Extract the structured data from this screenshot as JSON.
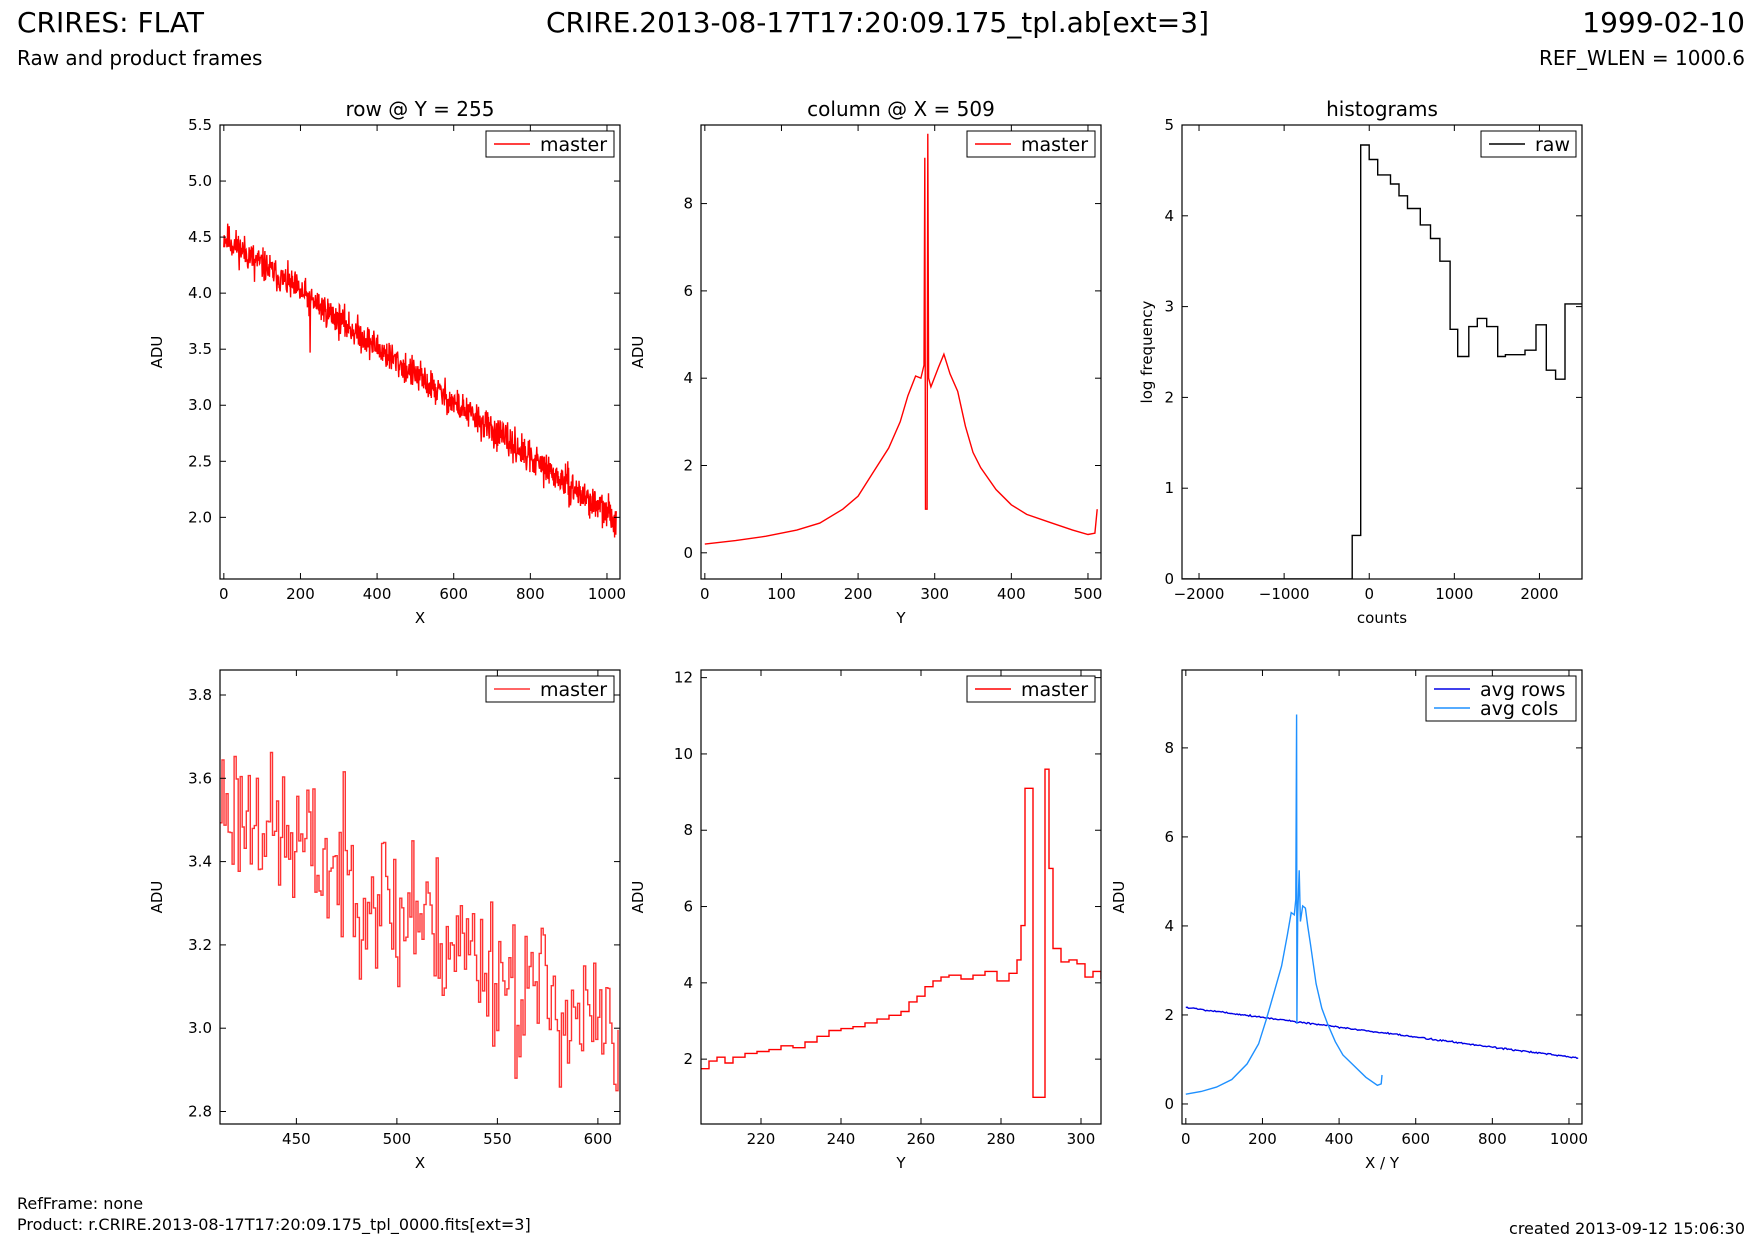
{
  "header": {
    "title": "CRIRES: FLAT",
    "subtitle": "Raw and product frames",
    "file": "CRIRE.2013-08-17T17:20:09.175_tpl.ab[ext=3]",
    "date": "1999-02-10",
    "ref_wlen": "REF_WLEN = 1000.6"
  },
  "footer": {
    "ref_frame": "RefFrame: none",
    "product": "Product: r.CRIRE.2013-08-17T17:20:09.175_tpl_0000.fits[ext=3]",
    "created": "created 2013-09-12 15:06:30"
  },
  "colors": {
    "red": "#ff0000",
    "red_light": "#ff3333",
    "black": "#000000",
    "blue": "#0000e6",
    "light_blue": "#1e90ff"
  },
  "chart_data": [
    {
      "id": "row-full",
      "type": "line",
      "title": "row @ Y = 255",
      "xlabel": "X",
      "ylabel": "ADU",
      "xlim": [
        -10,
        1034
      ],
      "ylim": [
        1.45,
        5.5
      ],
      "xticks": [
        0,
        200,
        400,
        600,
        800,
        1000
      ],
      "yticks": [
        2.0,
        2.5,
        3.0,
        3.5,
        4.0,
        4.5,
        5.0,
        5.5
      ],
      "ytick_labels": [
        "2.0",
        "2.5",
        "3.0",
        "3.5",
        "4.0",
        "4.5",
        "5.0",
        "5.5"
      ],
      "legend": {
        "position": "top-right"
      },
      "series": [
        {
          "name": "master",
          "color": "#ff0000",
          "generator": {
            "kind": "linear-noise",
            "x0": 0,
            "x1": 1024,
            "n": 1024,
            "y0": 4.5,
            "y1": 1.98,
            "noise": 0.09,
            "seed": 11,
            "spikes": [
              [
                225,
                3.47
              ],
              [
                80,
                4.1
              ],
              [
                790,
                2.42
              ],
              [
                1020,
                1.82
              ]
            ]
          }
        }
      ]
    },
    {
      "id": "col-full",
      "type": "line",
      "title": "column @ X = 509",
      "xlabel": "Y",
      "ylabel": "ADU",
      "xlim": [
        -5,
        517
      ],
      "ylim": [
        -0.6,
        9.8
      ],
      "xticks": [
        0,
        100,
        200,
        300,
        400,
        500
      ],
      "yticks": [
        0,
        2,
        4,
        6,
        8
      ],
      "legend": {
        "position": "top-right"
      },
      "series": [
        {
          "name": "master",
          "color": "#ff0000",
          "points": [
            [
              0,
              0.2
            ],
            [
              40,
              0.28
            ],
            [
              80,
              0.38
            ],
            [
              120,
              0.52
            ],
            [
              150,
              0.68
            ],
            [
              180,
              1.0
            ],
            [
              200,
              1.3
            ],
            [
              220,
              1.85
            ],
            [
              240,
              2.4
            ],
            [
              255,
              3.0
            ],
            [
              265,
              3.6
            ],
            [
              275,
              4.05
            ],
            [
              282,
              4.0
            ],
            [
              286,
              4.3
            ],
            [
              287,
              9.05
            ],
            [
              288,
              1.0
            ],
            [
              290,
              1.0
            ],
            [
              291,
              9.6
            ],
            [
              292,
              4.0
            ],
            [
              295,
              3.8
            ],
            [
              305,
              4.25
            ],
            [
              312,
              4.55
            ],
            [
              320,
              4.1
            ],
            [
              330,
              3.7
            ],
            [
              340,
              2.9
            ],
            [
              350,
              2.3
            ],
            [
              360,
              1.95
            ],
            [
              380,
              1.45
            ],
            [
              400,
              1.1
            ],
            [
              420,
              0.88
            ],
            [
              450,
              0.7
            ],
            [
              480,
              0.52
            ],
            [
              500,
              0.42
            ],
            [
              509,
              0.45
            ],
            [
              512,
              1.0
            ]
          ]
        }
      ]
    },
    {
      "id": "hist",
      "type": "line",
      "title": "histograms",
      "xlabel": "counts",
      "ylabel": "log frequency",
      "xlim": [
        -2200,
        2500
      ],
      "ylim": [
        0,
        5
      ],
      "xticks": [
        -2000,
        -1000,
        0,
        1000,
        2000
      ],
      "xtick_labels": [
        "−2000",
        "−1000",
        "0",
        "1000",
        "2000"
      ],
      "yticks": [
        0,
        1,
        2,
        3,
        4,
        5
      ],
      "legend": {
        "position": "top-right"
      },
      "series": [
        {
          "name": "raw",
          "color": "#000000",
          "step": true,
          "points": [
            [
              -2200,
              0
            ],
            [
              -200,
              0
            ],
            [
              -200,
              0.48
            ],
            [
              -100,
              0.48
            ],
            [
              -100,
              4.78
            ],
            [
              0,
              4.78
            ],
            [
              0,
              4.62
            ],
            [
              100,
              4.62
            ],
            [
              100,
              4.45
            ],
            [
              250,
              4.45
            ],
            [
              250,
              4.35
            ],
            [
              350,
              4.35
            ],
            [
              350,
              4.22
            ],
            [
              450,
              4.22
            ],
            [
              450,
              4.08
            ],
            [
              600,
              4.08
            ],
            [
              600,
              3.9
            ],
            [
              720,
              3.9
            ],
            [
              720,
              3.75
            ],
            [
              830,
              3.75
            ],
            [
              830,
              3.5
            ],
            [
              950,
              3.5
            ],
            [
              950,
              2.75
            ],
            [
              1040,
              2.75
            ],
            [
              1040,
              2.45
            ],
            [
              1170,
              2.45
            ],
            [
              1170,
              2.78
            ],
            [
              1270,
              2.78
            ],
            [
              1270,
              2.87
            ],
            [
              1380,
              2.87
            ],
            [
              1380,
              2.78
            ],
            [
              1510,
              2.78
            ],
            [
              1510,
              2.45
            ],
            [
              1600,
              2.45
            ],
            [
              1600,
              2.47
            ],
            [
              1830,
              2.47
            ],
            [
              1830,
              2.52
            ],
            [
              1960,
              2.52
            ],
            [
              1960,
              2.8
            ],
            [
              2080,
              2.8
            ],
            [
              2080,
              2.3
            ],
            [
              2190,
              2.3
            ],
            [
              2190,
              2.2
            ],
            [
              2300,
              2.2
            ],
            [
              2300,
              3.03
            ],
            [
              2500,
              3.03
            ]
          ]
        }
      ]
    },
    {
      "id": "row-zoom",
      "type": "line",
      "xlabel": "X",
      "ylabel": "ADU",
      "xlim": [
        412,
        611
      ],
      "ylim": [
        2.77,
        3.86
      ],
      "xticks": [
        450,
        500,
        550,
        600
      ],
      "yticks": [
        2.8,
        3.0,
        3.2,
        3.4,
        3.6,
        3.8
      ],
      "ytick_labels": [
        "2.8",
        "3.0",
        "3.2",
        "3.4",
        "3.6",
        "3.8"
      ],
      "legend": {
        "position": "top-right"
      },
      "series": [
        {
          "name": "master",
          "color": "#ff3333",
          "step": true,
          "generator": {
            "kind": "linear-noise",
            "x0": 412,
            "x1": 610,
            "n": 198,
            "y0": 3.55,
            "y1": 2.97,
            "noise": 0.11,
            "seed": 23,
            "spikes": [
              [
                559,
                2.88
              ],
              [
                500,
                3.1
              ],
              [
                507,
                3.45
              ],
              [
                609,
                2.85
              ],
              [
                430,
                3.6
              ]
            ]
          }
        }
      ]
    },
    {
      "id": "col-zoom",
      "type": "line",
      "xlabel": "Y",
      "ylabel": "ADU",
      "xlim": [
        205,
        305
      ],
      "ylim": [
        0.3,
        12.2
      ],
      "xticks": [
        220,
        240,
        260,
        280,
        300
      ],
      "yticks": [
        2,
        4,
        6,
        8,
        10,
        12
      ],
      "legend": {
        "position": "top-right"
      },
      "series": [
        {
          "name": "master",
          "color": "#ff0000",
          "step": true,
          "points": [
            [
              205,
              1.75
            ],
            [
              207,
              1.95
            ],
            [
              209,
              2.05
            ],
            [
              211,
              1.9
            ],
            [
              213,
              2.05
            ],
            [
              216,
              2.15
            ],
            [
              219,
              2.2
            ],
            [
              222,
              2.25
            ],
            [
              225,
              2.35
            ],
            [
              228,
              2.3
            ],
            [
              231,
              2.45
            ],
            [
              234,
              2.6
            ],
            [
              237,
              2.75
            ],
            [
              240,
              2.8
            ],
            [
              243,
              2.85
            ],
            [
              246,
              2.95
            ],
            [
              249,
              3.05
            ],
            [
              252,
              3.15
            ],
            [
              255,
              3.25
            ],
            [
              257,
              3.5
            ],
            [
              259,
              3.65
            ],
            [
              261,
              3.9
            ],
            [
              263,
              4.05
            ],
            [
              265,
              4.15
            ],
            [
              267,
              4.2
            ],
            [
              270,
              4.1
            ],
            [
              273,
              4.2
            ],
            [
              276,
              4.3
            ],
            [
              279,
              4.05
            ],
            [
              282,
              4.25
            ],
            [
              284,
              4.6
            ],
            [
              285,
              5.5
            ],
            [
              286,
              9.1
            ],
            [
              288,
              1.0
            ],
            [
              291,
              9.6
            ],
            [
              292,
              7.0
            ],
            [
              293,
              4.9
            ],
            [
              295,
              4.55
            ],
            [
              297,
              4.6
            ],
            [
              299,
              4.5
            ],
            [
              301,
              4.15
            ],
            [
              303,
              4.3
            ],
            [
              305,
              4.1
            ]
          ]
        }
      ]
    },
    {
      "id": "avg",
      "type": "line",
      "xlabel": "X / Y",
      "ylabel": "ADU",
      "xlim": [
        -10,
        1034
      ],
      "ylim": [
        -0.45,
        9.75
      ],
      "xticks": [
        0,
        200,
        400,
        600,
        800,
        1000
      ],
      "yticks": [
        0,
        2,
        4,
        6,
        8
      ],
      "legend": {
        "position": "top-right"
      },
      "series": [
        {
          "name": "avg rows",
          "color": "#0000e6",
          "generator": {
            "kind": "linear-noise",
            "x0": 0,
            "x1": 1024,
            "n": 300,
            "y0": 2.17,
            "y1": 1.03,
            "noise": 0.012,
            "seed": 5,
            "spikes": []
          }
        },
        {
          "name": "avg cols",
          "color": "#1e90ff",
          "points": [
            [
              0,
              0.22
            ],
            [
              40,
              0.28
            ],
            [
              80,
              0.38
            ],
            [
              120,
              0.55
            ],
            [
              160,
              0.9
            ],
            [
              190,
              1.35
            ],
            [
              210,
              1.9
            ],
            [
              230,
              2.5
            ],
            [
              250,
              3.1
            ],
            [
              265,
              3.8
            ],
            [
              275,
              4.3
            ],
            [
              283,
              4.25
            ],
            [
              287,
              4.6
            ],
            [
              289,
              8.75
            ],
            [
              290,
              1.8
            ],
            [
              292,
              4.2
            ],
            [
              296,
              5.25
            ],
            [
              299,
              4.1
            ],
            [
              305,
              4.45
            ],
            [
              312,
              4.4
            ],
            [
              318,
              4.0
            ],
            [
              325,
              3.6
            ],
            [
              340,
              2.7
            ],
            [
              355,
              2.15
            ],
            [
              370,
              1.8
            ],
            [
              390,
              1.4
            ],
            [
              410,
              1.1
            ],
            [
              440,
              0.85
            ],
            [
              470,
              0.6
            ],
            [
              500,
              0.42
            ],
            [
              510,
              0.45
            ],
            [
              512,
              0.65
            ]
          ]
        }
      ]
    }
  ]
}
